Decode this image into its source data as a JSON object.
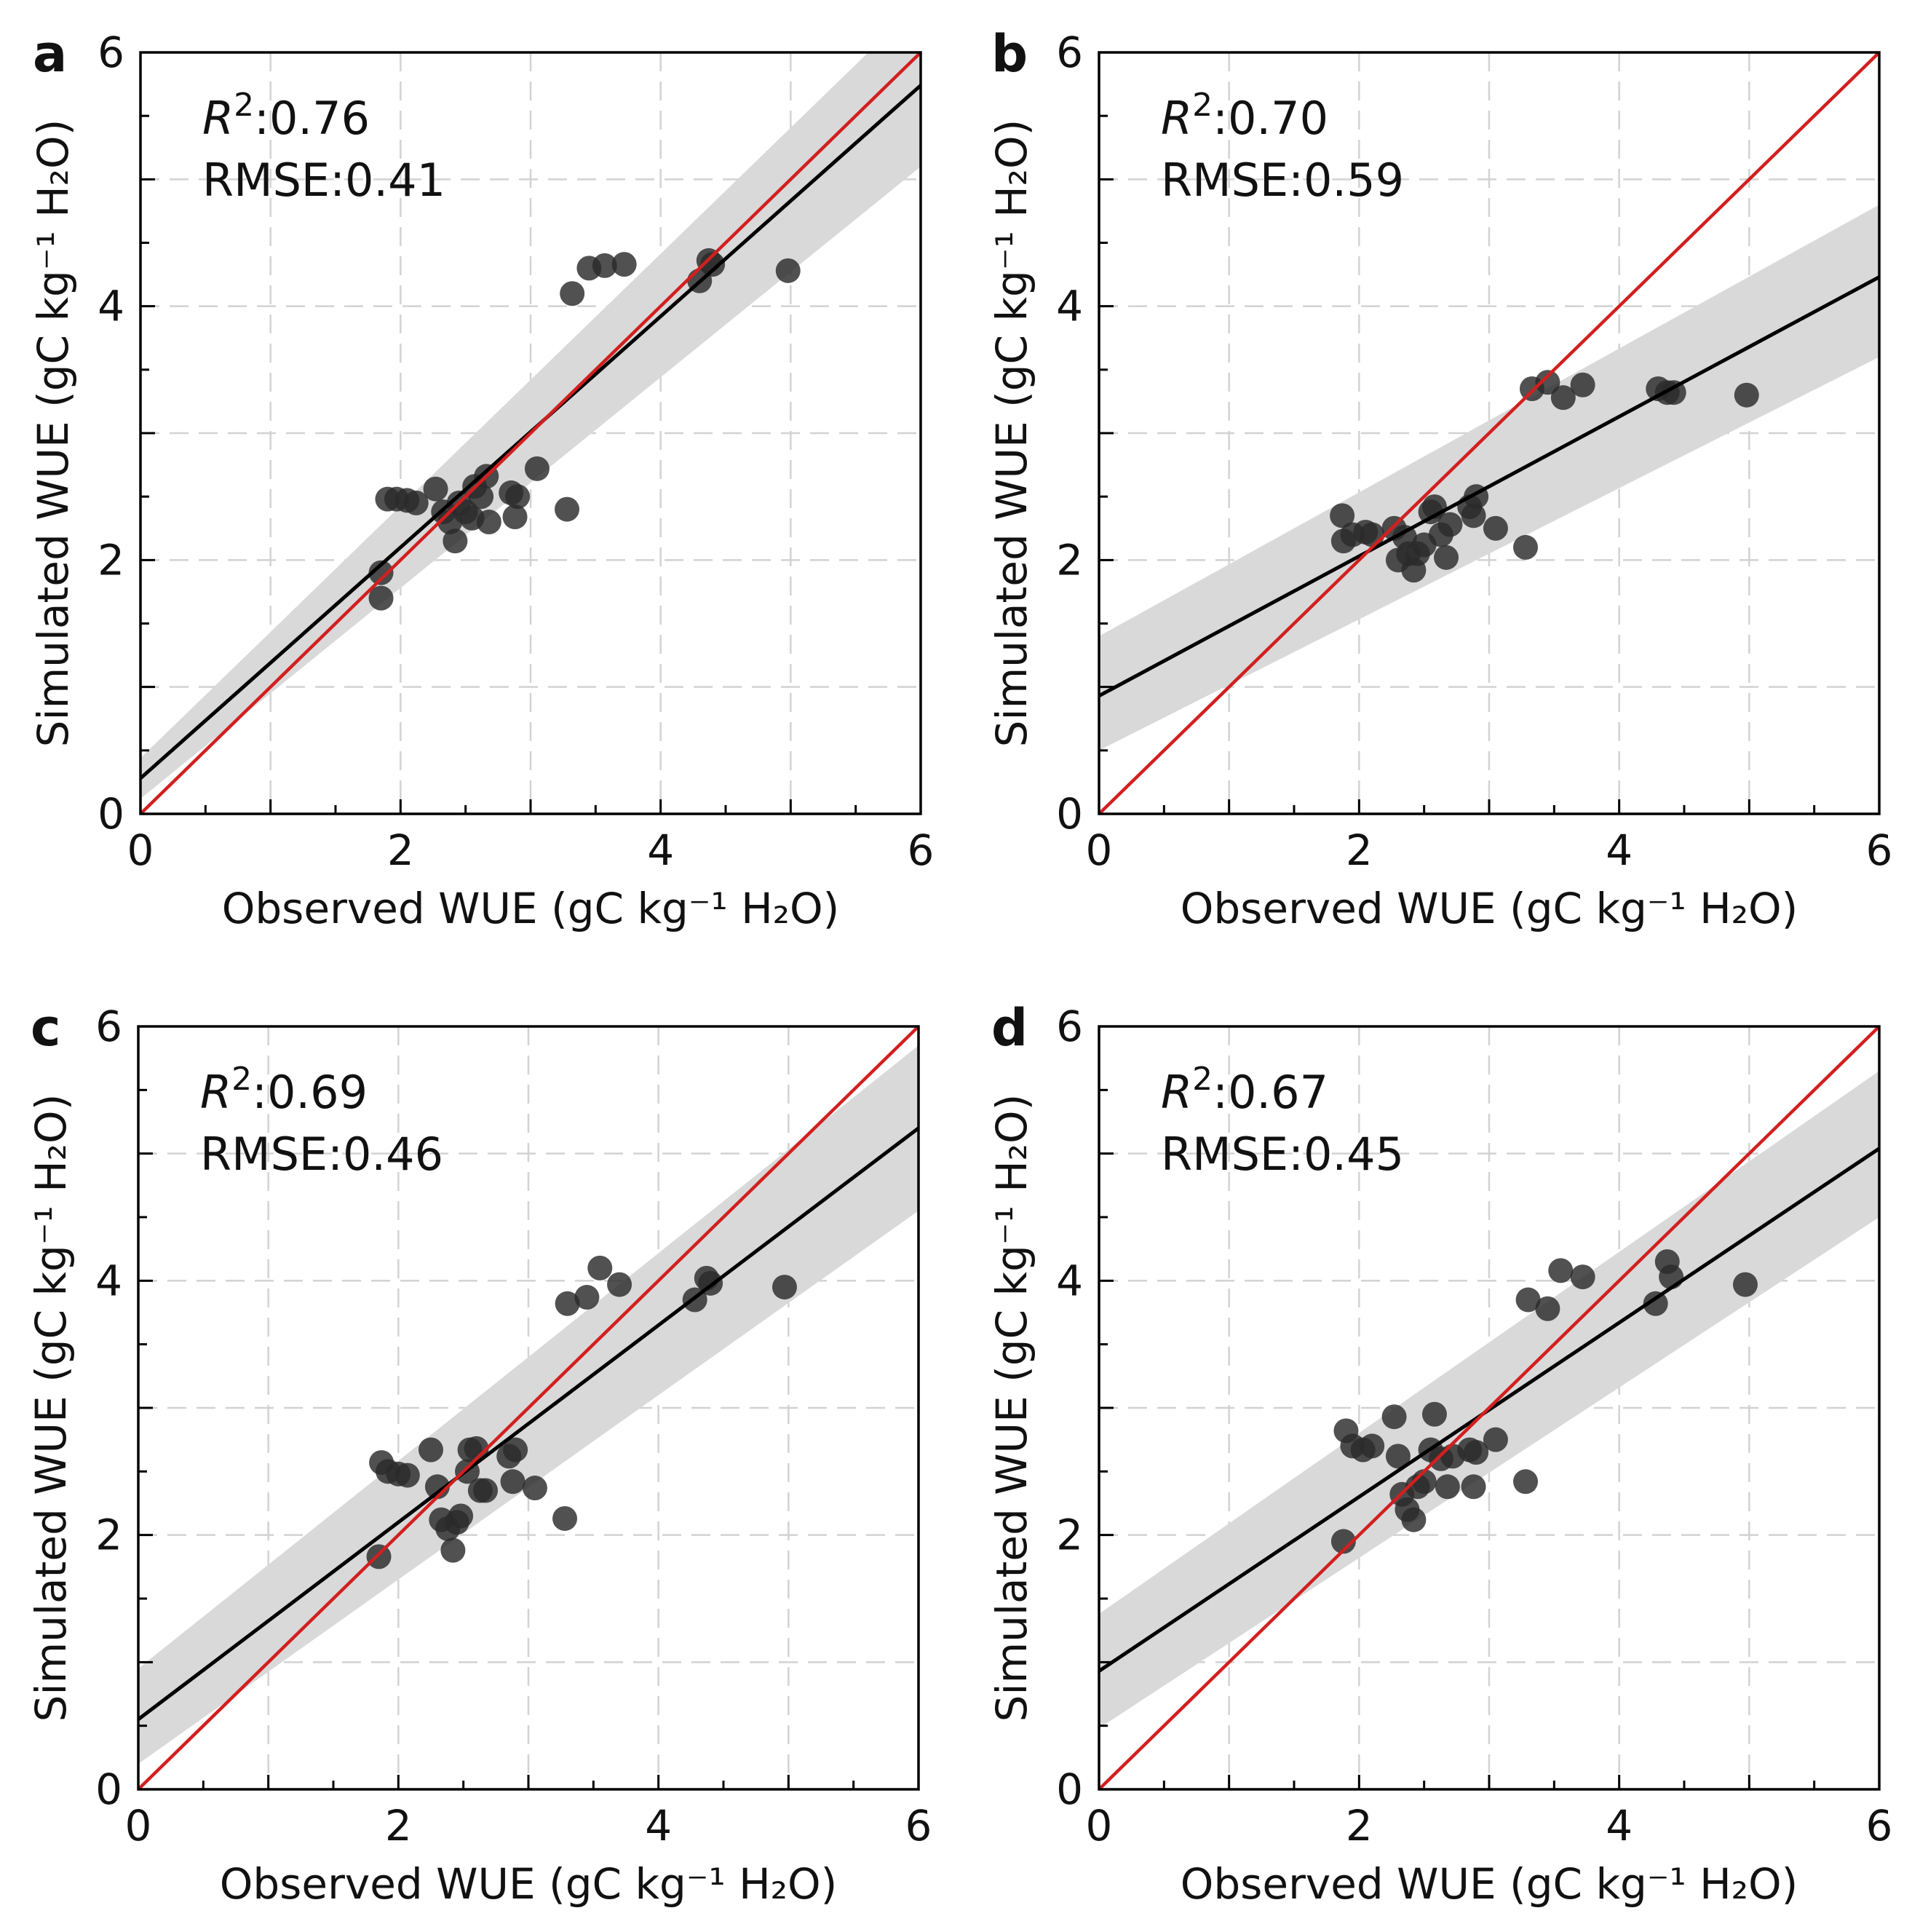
{
  "chart_data": [
    {
      "panel": "a",
      "type": "scatter",
      "r2_label": "0.76",
      "rmse_label": "RMSE:0.41",
      "xlabel": "Observed WUE (gC kg⁻¹ H₂O)",
      "ylabel": "Simulated WUE (gC kg⁻¹ H₂O)",
      "xlim": [
        0,
        6
      ],
      "ylim": [
        0,
        6
      ],
      "xticks": [
        0,
        2,
        4,
        6
      ],
      "yticks": [
        0,
        2,
        4,
        6
      ],
      "minor_step": 0.5,
      "grid": true,
      "fit": {
        "intercept": 0.28,
        "slope": 0.91,
        "ci_low": [
          0.12,
          5.1
        ],
        "ci_high": [
          0.44,
          6.4
        ]
      },
      "one_to_one": true,
      "points": [
        [
          1.85,
          1.9
        ],
        [
          1.85,
          1.7
        ],
        [
          1.9,
          2.48
        ],
        [
          1.97,
          2.48
        ],
        [
          2.05,
          2.47
        ],
        [
          2.12,
          2.45
        ],
        [
          2.27,
          2.56
        ],
        [
          2.33,
          2.38
        ],
        [
          2.38,
          2.3
        ],
        [
          2.42,
          2.15
        ],
        [
          2.45,
          2.45
        ],
        [
          2.5,
          2.38
        ],
        [
          2.55,
          2.33
        ],
        [
          2.57,
          2.58
        ],
        [
          2.62,
          2.5
        ],
        [
          2.66,
          2.66
        ],
        [
          2.68,
          2.3
        ],
        [
          2.85,
          2.53
        ],
        [
          2.88,
          2.34
        ],
        [
          2.9,
          2.5
        ],
        [
          3.05,
          2.72
        ],
        [
          3.28,
          2.4
        ],
        [
          3.32,
          4.1
        ],
        [
          3.45,
          4.3
        ],
        [
          3.57,
          4.32
        ],
        [
          3.72,
          4.33
        ],
        [
          4.3,
          4.2
        ],
        [
          4.37,
          4.36
        ],
        [
          4.4,
          4.33
        ],
        [
          4.98,
          4.28
        ]
      ]
    },
    {
      "panel": "b",
      "type": "scatter",
      "r2_label": "0.70",
      "rmse_label": "RMSE:0.59",
      "xlabel": "Observed WUE (gC kg⁻¹ H₂O)",
      "ylabel": "Simulated WUE (gC kg⁻¹ H₂O)",
      "xlim": [
        0,
        6
      ],
      "ylim": [
        0,
        6
      ],
      "xticks": [
        0,
        2,
        4,
        6
      ],
      "yticks": [
        0,
        2,
        4,
        6
      ],
      "minor_step": 0.5,
      "grid": true,
      "fit": {
        "intercept": 0.93,
        "slope": 0.55,
        "ci_low": [
          0.5,
          3.6
        ],
        "ci_high": [
          1.4,
          4.8
        ]
      },
      "one_to_one": true,
      "points": [
        [
          1.87,
          2.35
        ],
        [
          1.88,
          2.15
        ],
        [
          1.95,
          2.2
        ],
        [
          2.05,
          2.22
        ],
        [
          2.1,
          2.2
        ],
        [
          2.27,
          2.25
        ],
        [
          2.3,
          2.0
        ],
        [
          2.35,
          2.18
        ],
        [
          2.38,
          2.05
        ],
        [
          2.42,
          1.92
        ],
        [
          2.45,
          2.05
        ],
        [
          2.5,
          2.12
        ],
        [
          2.55,
          2.38
        ],
        [
          2.58,
          2.42
        ],
        [
          2.63,
          2.2
        ],
        [
          2.67,
          2.02
        ],
        [
          2.7,
          2.28
        ],
        [
          2.85,
          2.42
        ],
        [
          2.88,
          2.35
        ],
        [
          2.9,
          2.5
        ],
        [
          3.05,
          2.25
        ],
        [
          3.28,
          2.1
        ],
        [
          3.33,
          3.35
        ],
        [
          3.45,
          3.4
        ],
        [
          3.57,
          3.28
        ],
        [
          3.72,
          3.38
        ],
        [
          4.3,
          3.35
        ],
        [
          4.37,
          3.32
        ],
        [
          4.42,
          3.32
        ],
        [
          4.98,
          3.3
        ]
      ]
    },
    {
      "panel": "c",
      "type": "scatter",
      "r2_label": "0.69",
      "rmse_label": "RMSE:0.46",
      "xlabel": "Observed WUE (gC kg⁻¹ H₂O)",
      "ylabel": "Simulated WUE (gC kg⁻¹ H₂O)",
      "xlim": [
        0,
        6
      ],
      "ylim": [
        0,
        6
      ],
      "xticks": [
        0,
        2,
        4,
        6
      ],
      "yticks": [
        0,
        2,
        4,
        6
      ],
      "minor_step": 0.5,
      "grid": true,
      "fit": {
        "intercept": 0.55,
        "slope": 0.775,
        "ci_low": [
          0.2,
          4.55
        ],
        "ci_high": [
          0.95,
          5.85
        ]
      },
      "one_to_one": true,
      "points": [
        [
          1.85,
          1.83
        ],
        [
          1.87,
          2.57
        ],
        [
          1.92,
          2.5
        ],
        [
          2.0,
          2.48
        ],
        [
          2.07,
          2.47
        ],
        [
          2.25,
          2.67
        ],
        [
          2.3,
          2.38
        ],
        [
          2.33,
          2.12
        ],
        [
          2.38,
          2.05
        ],
        [
          2.42,
          1.88
        ],
        [
          2.45,
          2.1
        ],
        [
          2.48,
          2.15
        ],
        [
          2.53,
          2.5
        ],
        [
          2.55,
          2.67
        ],
        [
          2.6,
          2.68
        ],
        [
          2.63,
          2.35
        ],
        [
          2.67,
          2.35
        ],
        [
          2.85,
          2.62
        ],
        [
          2.88,
          2.42
        ],
        [
          2.9,
          2.67
        ],
        [
          3.05,
          2.37
        ],
        [
          3.28,
          2.13
        ],
        [
          3.3,
          3.82
        ],
        [
          3.45,
          3.87
        ],
        [
          3.55,
          4.1
        ],
        [
          3.7,
          3.97
        ],
        [
          4.28,
          3.85
        ],
        [
          4.37,
          4.02
        ],
        [
          4.4,
          3.98
        ],
        [
          4.97,
          3.95
        ]
      ]
    },
    {
      "panel": "d",
      "type": "scatter",
      "r2_label": "0.67",
      "rmse_label": "RMSE:0.45",
      "xlabel": "Observed WUE (gC kg⁻¹ H₂O)",
      "ylabel": "Simulated WUE (gC kg⁻¹ H₂O)",
      "xlim": [
        0,
        6
      ],
      "ylim": [
        0,
        6
      ],
      "xticks": [
        0,
        2,
        4,
        6
      ],
      "yticks": [
        0,
        2,
        4,
        6
      ],
      "minor_step": 0.5,
      "grid": true,
      "fit": {
        "intercept": 0.93,
        "slope": 0.685,
        "ci_low": [
          0.48,
          4.5
        ],
        "ci_high": [
          1.38,
          5.65
        ]
      },
      "one_to_one": true,
      "points": [
        [
          1.88,
          1.95
        ],
        [
          1.9,
          2.82
        ],
        [
          1.95,
          2.7
        ],
        [
          2.03,
          2.67
        ],
        [
          2.1,
          2.7
        ],
        [
          2.27,
          2.93
        ],
        [
          2.3,
          2.62
        ],
        [
          2.33,
          2.32
        ],
        [
          2.37,
          2.2
        ],
        [
          2.42,
          2.12
        ],
        [
          2.45,
          2.38
        ],
        [
          2.5,
          2.42
        ],
        [
          2.55,
          2.67
        ],
        [
          2.58,
          2.95
        ],
        [
          2.63,
          2.6
        ],
        [
          2.68,
          2.38
        ],
        [
          2.72,
          2.62
        ],
        [
          2.85,
          2.67
        ],
        [
          2.88,
          2.38
        ],
        [
          2.9,
          2.65
        ],
        [
          3.05,
          2.75
        ],
        [
          3.28,
          2.42
        ],
        [
          3.3,
          3.85
        ],
        [
          3.45,
          3.78
        ],
        [
          3.55,
          4.08
        ],
        [
          3.72,
          4.03
        ],
        [
          4.28,
          3.82
        ],
        [
          4.37,
          4.15
        ],
        [
          4.4,
          4.03
        ],
        [
          4.97,
          3.97
        ]
      ]
    }
  ]
}
